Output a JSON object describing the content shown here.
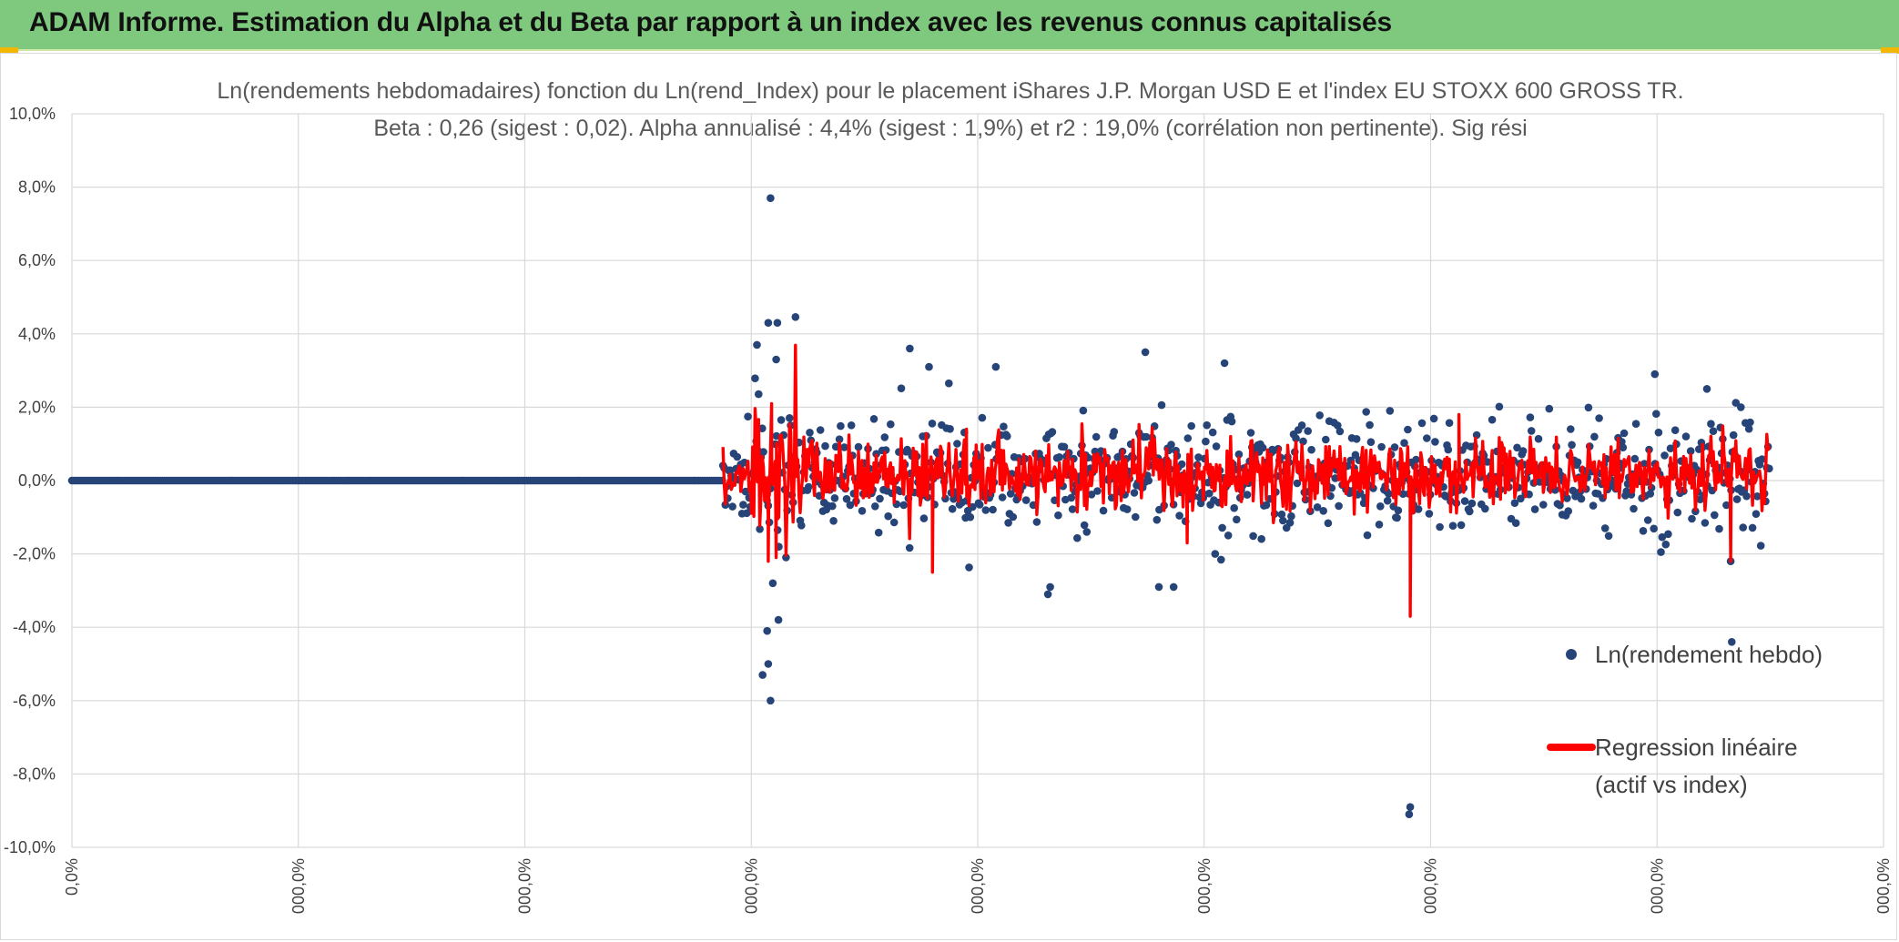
{
  "header": {
    "title": "ADAM Informe. Estimation du Alpha et du Beta par rapport à un index avec les revenus connus capitalisés",
    "background_color": "#7fc97f"
  },
  "chart_data": {
    "type": "scatter",
    "title": "Ln(rendements hebdomadaires) fonction du Ln(rend_Index) pour le placement iShares J.P. Morgan USD E et l'index EU STOXX 600 GROSS TR.",
    "subtitle": "Beta : 0,26 (sigest : 0,02). Alpha annualisé : 4,4% (sigest : 1,9%) et r2 : 19,0% (corrélation non pertinente). Sig rési",
    "xlabel": "",
    "ylabel": "",
    "ylim": [
      -0.1,
      0.1
    ],
    "y_tick_labels": [
      "10,0%",
      "8,0%",
      "6,0%",
      "4,0%",
      "2,0%",
      "0,0%",
      "-2,0%",
      "-4,0%",
      "-6,0%",
      "-8,0%",
      "-10,0%"
    ],
    "x_tick_labels": [
      "0,0%",
      "000,0%",
      "000,0%",
      "000,0%",
      "000,0%",
      "000,0%",
      "000,0%",
      "000,0%",
      "000,0%"
    ],
    "xlim": [
      0,
      1600
    ],
    "zero_segment": {
      "x_from": 0,
      "x_to": 575
    },
    "active_segment": {
      "x_from": 575,
      "x_to": 1500
    },
    "grid": true,
    "legend_placement": "right",
    "series": [
      {
        "name": "Ln(rendement hebdo)",
        "kind": "scatter",
        "color": "#264478",
        "notable_points": [
          {
            "x": 617,
            "y": 0.077
          },
          {
            "x": 615,
            "y": 0.043
          },
          {
            "x": 623,
            "y": 0.043
          },
          {
            "x": 605,
            "y": 0.037
          },
          {
            "x": 622,
            "y": 0.033
          },
          {
            "x": 740,
            "y": 0.036
          },
          {
            "x": 757,
            "y": 0.031
          },
          {
            "x": 816,
            "y": 0.031
          },
          {
            "x": 948,
            "y": 0.035
          },
          {
            "x": 1018,
            "y": 0.032
          },
          {
            "x": 1398,
            "y": 0.029
          },
          {
            "x": 1444,
            "y": 0.025
          },
          {
            "x": 1474,
            "y": 0.02
          },
          {
            "x": 614,
            "y": -0.041
          },
          {
            "x": 610,
            "y": -0.053
          },
          {
            "x": 615,
            "y": -0.05
          },
          {
            "x": 617,
            "y": -0.06
          },
          {
            "x": 624,
            "y": -0.038
          },
          {
            "x": 619,
            "y": -0.028
          },
          {
            "x": 862,
            "y": -0.031
          },
          {
            "x": 864,
            "y": -0.029
          },
          {
            "x": 960,
            "y": -0.029
          },
          {
            "x": 973,
            "y": -0.029
          },
          {
            "x": 1182,
            "y": -0.089
          },
          {
            "x": 1181,
            "y": -0.091
          },
          {
            "x": 1466,
            "y": -0.044
          },
          {
            "x": 1465,
            "y": -0.022
          }
        ]
      },
      {
        "name": "Regression linéaire",
        "name_line2": "(actif vs index)",
        "kind": "line",
        "color": "#ff0000",
        "notable_points": [
          {
            "x": 618,
            "y": 0.021
          },
          {
            "x": 615,
            "y": -0.022
          },
          {
            "x": 622,
            "y": -0.021
          },
          {
            "x": 760,
            "y": -0.025
          },
          {
            "x": 790,
            "y": 0.014
          },
          {
            "x": 985,
            "y": -0.017
          },
          {
            "x": 1182,
            "y": -0.037
          },
          {
            "x": 1225,
            "y": 0.018
          },
          {
            "x": 1465,
            "y": -0.022
          }
        ]
      }
    ]
  }
}
